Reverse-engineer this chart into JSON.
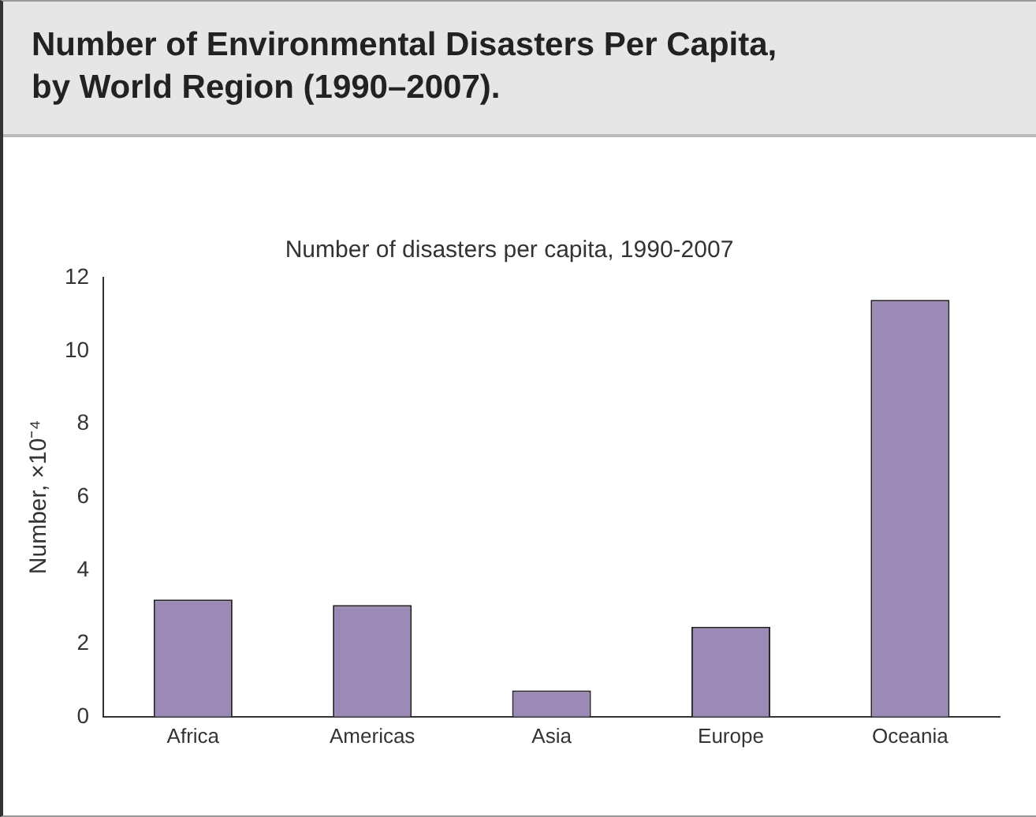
{
  "chart_data": {
    "type": "bar",
    "title": "Number of Environmental Disasters Per Capita, by World Region (1990–2007).",
    "subtitle": "Number of disasters per capita, 1990-2007",
    "ylabel": "Number, ×10⁻⁴",
    "categories": [
      "Africa",
      "Americas",
      "Asia",
      "Europe",
      "Oceania"
    ],
    "values": [
      3.2,
      3.05,
      0.72,
      2.46,
      11.39
    ],
    "color": "#9b8ab5",
    "ylim": [
      0,
      12
    ],
    "yticks": [
      0,
      2,
      4,
      6,
      8,
      10,
      12
    ],
    "grid": false,
    "legend": false
  }
}
